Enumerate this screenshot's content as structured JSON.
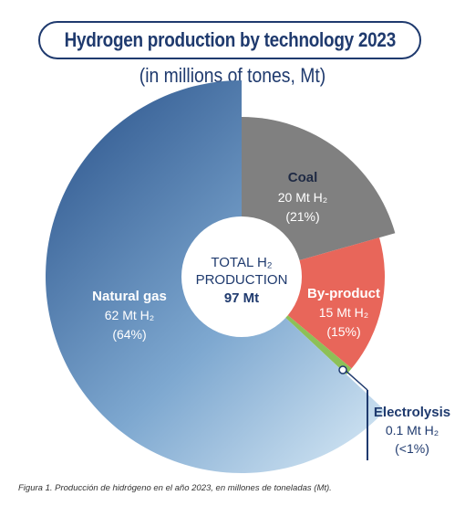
{
  "header": {
    "title": "Hydrogen production by technology 2023",
    "subtitle": "(in millions of tones, Mt)"
  },
  "center": {
    "line1": "TOTAL H₂",
    "line2": "PRODUCTION",
    "line3": "97 Mt"
  },
  "chart_data": {
    "type": "pie",
    "total_mt": 97,
    "slices": [
      {
        "name": "Coal",
        "value": 20,
        "value_label": "20 Mt H₂",
        "percent_label": "(21%)",
        "color": "#808080"
      },
      {
        "name": "By-product",
        "value": 15,
        "value_label": "15 Mt H₂",
        "percent_label": "(15%)",
        "color": "#e8665a"
      },
      {
        "name": "Electrolysis",
        "value": 0.1,
        "value_label": "0.1 Mt H₂",
        "percent_label": "(<1%)",
        "color": "#8dc057"
      },
      {
        "name": "Natural gas",
        "value": 62,
        "value_label": "62 Mt H₂",
        "percent_label": "(64%)",
        "color": "#4a72a8",
        "color_light": "#b9d3e8"
      }
    ]
  },
  "caption": "Figura 1. Producción de hidrógeno en el año 2023, en millones de toneladas (Mt)."
}
